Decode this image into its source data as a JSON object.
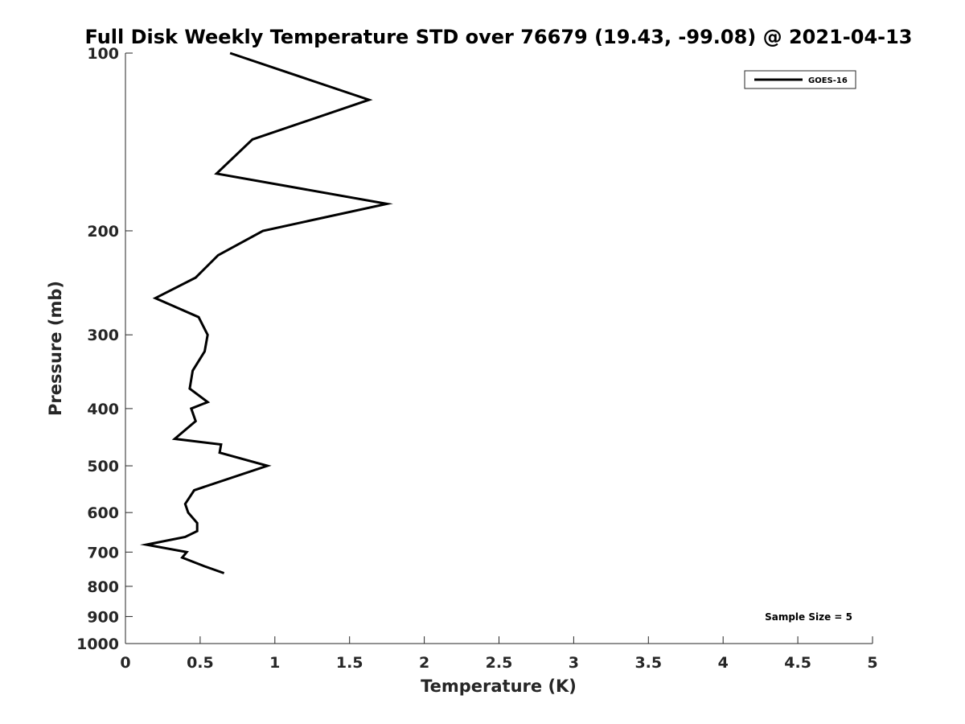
{
  "chart_data": {
    "type": "line",
    "title": "Full Disk Weekly Temperature STD over 76679 (19.43, -99.08) @ 2021-04-13",
    "xlabel": "Temperature (K)",
    "ylabel": "Pressure (mb)",
    "xlim": [
      0,
      5
    ],
    "ylim": [
      1000,
      100
    ],
    "y_scale": "log",
    "y_reversed": true,
    "grid": false,
    "xticks": [
      0,
      0.5,
      1,
      1.5,
      2,
      2.5,
      3,
      3.5,
      4,
      4.5,
      5
    ],
    "xtick_labels": [
      "0",
      "0.5",
      "1",
      "1.5",
      "2",
      "2.5",
      "3",
      "3.5",
      "4",
      "4.5",
      "5"
    ],
    "yticks": [
      100,
      200,
      300,
      400,
      500,
      600,
      700,
      800,
      900,
      1000
    ],
    "ytick_labels": [
      "100",
      "200",
      "300",
      "400",
      "500",
      "600",
      "700",
      "800",
      "900",
      "1000"
    ],
    "legend": {
      "placement": "top-right",
      "entries": [
        "GOES-16"
      ]
    },
    "annotation": "Sample Size = 5",
    "series": [
      {
        "name": "GOES-16",
        "color": "#000000",
        "points": [
          {
            "t": 0.7,
            "p": 100
          },
          {
            "t": 1.63,
            "p": 120
          },
          {
            "t": 0.85,
            "p": 140
          },
          {
            "t": 0.61,
            "p": 160
          },
          {
            "t": 1.75,
            "p": 180
          },
          {
            "t": 0.92,
            "p": 200
          },
          {
            "t": 0.62,
            "p": 220
          },
          {
            "t": 0.47,
            "p": 240
          },
          {
            "t": 0.2,
            "p": 260
          },
          {
            "t": 0.49,
            "p": 280
          },
          {
            "t": 0.55,
            "p": 300
          },
          {
            "t": 0.53,
            "p": 320
          },
          {
            "t": 0.45,
            "p": 345
          },
          {
            "t": 0.43,
            "p": 370
          },
          {
            "t": 0.55,
            "p": 390
          },
          {
            "t": 0.44,
            "p": 400
          },
          {
            "t": 0.47,
            "p": 420
          },
          {
            "t": 0.33,
            "p": 450
          },
          {
            "t": 0.64,
            "p": 460
          },
          {
            "t": 0.63,
            "p": 475
          },
          {
            "t": 0.95,
            "p": 500
          },
          {
            "t": 0.46,
            "p": 550
          },
          {
            "t": 0.4,
            "p": 580
          },
          {
            "t": 0.42,
            "p": 600
          },
          {
            "t": 0.48,
            "p": 625
          },
          {
            "t": 0.48,
            "p": 645
          },
          {
            "t": 0.4,
            "p": 660
          },
          {
            "t": 0.14,
            "p": 680
          },
          {
            "t": 0.41,
            "p": 700
          },
          {
            "t": 0.38,
            "p": 715
          },
          {
            "t": 0.53,
            "p": 740
          },
          {
            "t": 0.66,
            "p": 760
          }
        ]
      }
    ]
  }
}
